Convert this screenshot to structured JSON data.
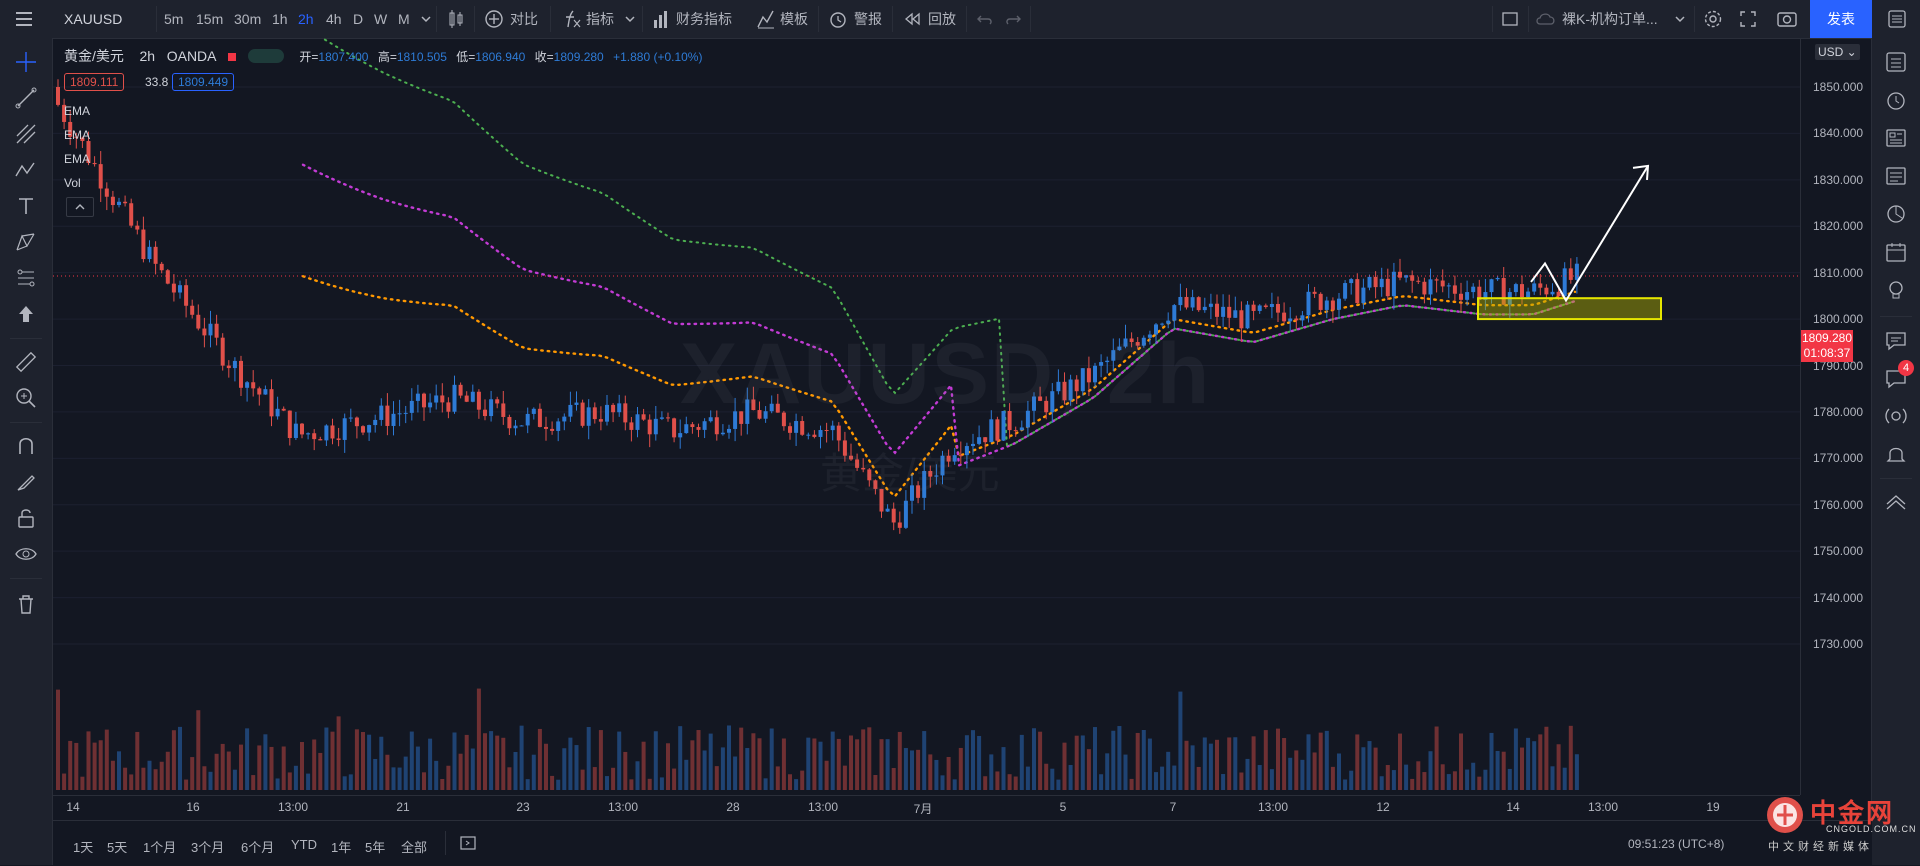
{
  "topbar": {
    "symbol": "XAUUSD",
    "intervals": [
      "5m",
      "15m",
      "30m",
      "1h",
      "2h",
      "4h",
      "D",
      "W",
      "M"
    ],
    "active_interval": "2h",
    "compare_label": "对比",
    "indicators_label": "指标",
    "financials_label": "财务指标",
    "templates_label": "模板",
    "alert_label": "警报",
    "replay_label": "回放",
    "layout_name": "裸K-机构订单...",
    "publish_label": "发表"
  },
  "legend": {
    "title": "黄金/美元",
    "interval": "2h",
    "source": "OANDA",
    "open_label": "开=",
    "open": "1807.400",
    "high_label": "高=",
    "high": "1810.505",
    "low_label": "低=",
    "low": "1806.940",
    "close_label": "收=",
    "close": "1809.280",
    "change": "+1.880 (+0.10%)",
    "bid": "1809.111",
    "spread": "33.8",
    "ask": "1809.449",
    "indicators": [
      "EMA",
      "EMA",
      "EMA",
      "Vol"
    ]
  },
  "watermark": {
    "symbol": "XAUUSD, 2h",
    "name": "黄金/美元"
  },
  "price_scale": {
    "currency": "USD",
    "ticks": [
      "1850.000",
      "1840.000",
      "1830.000",
      "1820.000",
      "1810.000",
      "1800.000",
      "1790.000",
      "1780.000",
      "1770.000",
      "1760.000",
      "1750.000",
      "1740.000",
      "1730.000"
    ],
    "last_price": "1809.280",
    "countdown": "01:08:37"
  },
  "time_scale": {
    "labels": [
      "14",
      "16",
      "13:00",
      "21",
      "23",
      "13:00",
      "28",
      "13:00",
      "7月",
      "5",
      "7",
      "13:00",
      "12",
      "14",
      "13:00",
      "19"
    ]
  },
  "bottom": {
    "ranges": [
      "1天",
      "5天",
      "1个月",
      "3个月",
      "6个月",
      "YTD",
      "1年",
      "5年",
      "全部"
    ],
    "clock": "09:51:23 (UTC+8)"
  },
  "brand": {
    "name": "中金网",
    "url": "CNGOLD.COM.CN",
    "footer": "中文财经新媒体"
  },
  "notifications": {
    "count": "4"
  },
  "colors": {
    "up": "#2e7bd6",
    "down": "#e0504a",
    "ema_fast": "#ff9800",
    "ema_mid": "#c23bd4",
    "ema_slow": "#4caf50",
    "zone": "#e6e600",
    "publish_bg": "#2962ff"
  },
  "chart_data": {
    "type": "candlestick",
    "symbol": "XAUUSD",
    "interval": "2h",
    "ylim": [
      1730,
      1855
    ],
    "approx_close_path": [
      {
        "t": "14",
        "price": 1848
      },
      {
        "t": "15",
        "price": 1812
      },
      {
        "t": "16 13:00",
        "price": 1790
      },
      {
        "t": "17",
        "price": 1775
      },
      {
        "t": "21",
        "price": 1779
      },
      {
        "t": "22",
        "price": 1783
      },
      {
        "t": "23",
        "price": 1778
      },
      {
        "t": "24",
        "price": 1780
      },
      {
        "t": "25",
        "price": 1776
      },
      {
        "t": "28",
        "price": 1780
      },
      {
        "t": "29",
        "price": 1776
      },
      {
        "t": "30",
        "price": 1756
      },
      {
        "t": "7月",
        "price": 1773
      },
      {
        "t": "2",
        "price": 1778
      },
      {
        "t": "5",
        "price": 1788
      },
      {
        "t": "6",
        "price": 1803
      },
      {
        "t": "7",
        "price": 1800
      },
      {
        "t": "8",
        "price": 1805
      },
      {
        "t": "9",
        "price": 1808
      },
      {
        "t": "12",
        "price": 1806
      },
      {
        "t": "13",
        "price": 1806
      },
      {
        "t": "14",
        "price": 1809.28
      }
    ],
    "annotations": {
      "support_zone": [
        1800,
        1804.5
      ],
      "projection_target": 1833
    },
    "legend": [
      "EMA",
      "EMA",
      "EMA",
      "Vol"
    ]
  }
}
